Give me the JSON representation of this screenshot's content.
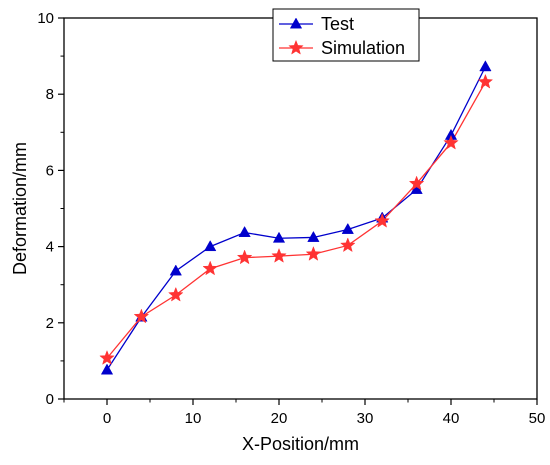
{
  "chart_data": {
    "type": "line",
    "xlabel": "X-Position/mm",
    "ylabel": "Deformation/mm",
    "xlim": [
      -5,
      50
    ],
    "ylim": [
      0,
      10
    ],
    "x_ticks": [
      0,
      10,
      20,
      30,
      40,
      50
    ],
    "y_ticks": [
      0,
      2,
      4,
      6,
      8,
      10
    ],
    "grid": false,
    "legend_position": "top-right",
    "series": [
      {
        "name": "Test",
        "color": "#0000cc",
        "marker": "triangle",
        "x": [
          0,
          4,
          8,
          12,
          16,
          20,
          24,
          28,
          32,
          36,
          40,
          44
        ],
        "y": [
          0.76,
          2.15,
          3.36,
          4.0,
          4.37,
          4.22,
          4.24,
          4.45,
          4.75,
          5.5,
          6.92,
          8.72
        ]
      },
      {
        "name": "Simulation",
        "color": "#ff3333",
        "marker": "star",
        "x": [
          0,
          4,
          8,
          12,
          16,
          20,
          24,
          28,
          32,
          36,
          40,
          44
        ],
        "y": [
          1.07,
          2.16,
          2.73,
          3.42,
          3.71,
          3.75,
          3.8,
          4.03,
          4.67,
          5.65,
          6.72,
          8.32
        ]
      }
    ]
  }
}
